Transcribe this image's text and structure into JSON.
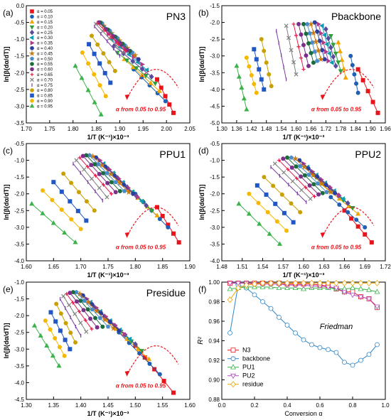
{
  "figure": {
    "alpha_labels": [
      "α = 0.05",
      "α = 0.10",
      "α = 0.15",
      "α = 0.20",
      "α = 0.25",
      "α = 0.30",
      "α = 0.35",
      "α = 0.40",
      "α = 0.45",
      "α = 0.50",
      "α = 0.55",
      "α = 0.60",
      "α = 0.65",
      "α = 0.70",
      "α = 0.75",
      "α = 0.80",
      "α = 0.85",
      "α = 0.90",
      "α = 0.95"
    ],
    "alpha_colors": [
      "#e8141b",
      "#1f5fb4",
      "#f0a500",
      "#2f9e3c",
      "#5a4a9c",
      "#0f9bb0",
      "#b03a8a",
      "#2b3f9e",
      "#c97a10",
      "#4a8cc9",
      "#1c6b3c",
      "#7a2f8a",
      "#e6194b",
      "#808080",
      "#7b3fa0",
      "#c8a000",
      "#2057c5",
      "#f5b800",
      "#3cb34a"
    ],
    "annotation": "α from 0.05 to 0.95",
    "xlabel": "1/T (K⁻¹)×10⁻³",
    "ylabel": "ln[β(dα/dT)]"
  },
  "chart_data": [
    {
      "type": "scatter",
      "panel_label": "(a)",
      "title": "PN3",
      "xlim": [
        1.7,
        2.05
      ],
      "ylim": [
        -3.5,
        0.0
      ],
      "xticks": [
        "1.70",
        "1.75",
        "1.80",
        "1.85",
        "1.90",
        "1.95",
        "2.00",
        "2.05"
      ],
      "yticks": [
        "0.0",
        "-0.5",
        "-1.0",
        "-1.5",
        "-2.0",
        "-2.5",
        "-3.0",
        "-3.5"
      ],
      "series_start_x": [
        1.98,
        1.93,
        1.91,
        1.895,
        1.888,
        1.882,
        1.876,
        1.87,
        1.866,
        1.862,
        1.858,
        1.855,
        1.852,
        1.849,
        1.846,
        1.84,
        1.834,
        1.82,
        1.805
      ],
      "series_start_y": [
        -2.2,
        -1.9,
        -1.6,
        -1.4,
        -1.2,
        -1.0,
        -0.85,
        -0.7,
        -0.6,
        -0.52,
        -0.5,
        -0.5,
        -0.52,
        -0.55,
        -0.62,
        -0.9,
        -1.15,
        -1.4,
        -1.8
      ],
      "series_end_x": [
        2.015,
        1.998,
        1.985,
        1.976,
        1.968,
        1.958,
        1.948,
        1.94,
        1.933,
        1.927,
        1.922,
        1.917,
        1.912,
        1.907,
        1.9,
        1.89,
        1.88,
        1.87,
        1.86
      ],
      "series_end_y": [
        -3.2,
        -2.85,
        -2.55,
        -2.32,
        -2.12,
        -1.92,
        -1.75,
        -1.6,
        -1.48,
        -1.4,
        -1.35,
        -1.33,
        -1.35,
        -1.4,
        -1.5,
        -1.95,
        -2.3,
        -2.7,
        -3.25
      ]
    },
    {
      "type": "scatter",
      "panel_label": "(b)",
      "title": "Pbackbone",
      "xlim": [
        1.3,
        1.96
      ],
      "ylim": [
        -5.0,
        -1.5
      ],
      "xticks": [
        "1.30",
        "1.36",
        "1.42",
        "1.48",
        "1.54",
        "1.60",
        "1.66",
        "1.72",
        "1.78",
        "1.84",
        "1.90",
        "1.96"
      ],
      "yticks": [
        "-1.5",
        "-2.0",
        "-2.5",
        "-3.0",
        "-3.5",
        "-4.0",
        "-4.5",
        "-5.0"
      ],
      "series_start_x": [
        1.85,
        1.82,
        1.77,
        1.74,
        1.72,
        1.705,
        1.69,
        1.675,
        1.66,
        1.645,
        1.63,
        1.61,
        1.59,
        1.56,
        1.52,
        1.46,
        1.43,
        1.4,
        1.36
      ],
      "series_start_y": [
        -3.4,
        -3.0,
        -2.6,
        -2.4,
        -2.2,
        -2.1,
        -2.05,
        -2.0,
        -2.05,
        -2.05,
        -2.05,
        -2.05,
        -2.05,
        -2.1,
        -2.25,
        -2.5,
        -2.8,
        -3.05,
        -3.3
      ],
      "series_end_x": [
        1.93,
        1.85,
        1.8,
        1.78,
        1.76,
        1.745,
        1.73,
        1.715,
        1.7,
        1.685,
        1.67,
        1.65,
        1.63,
        1.6,
        1.56,
        1.5,
        1.47,
        1.44,
        1.4
      ],
      "series_end_y": [
        -4.7,
        -4.1,
        -3.65,
        -3.45,
        -3.3,
        -3.2,
        -3.15,
        -3.1,
        -3.1,
        -3.15,
        -3.2,
        -3.3,
        -3.4,
        -3.55,
        -3.7,
        -3.9,
        -4.0,
        -4.1,
        -4.6
      ]
    },
    {
      "type": "scatter",
      "panel_label": "(c)",
      "title": "PPU1",
      "xlim": [
        1.6,
        1.9
      ],
      "ylim": [
        -4.0,
        -0.5
      ],
      "xticks": [
        "1.60",
        "1.65",
        "1.70",
        "1.75",
        "1.80",
        "1.85",
        "1.90"
      ],
      "yticks": [
        "-0.5",
        "-1.0",
        "-1.5",
        "-2.0",
        "-2.5",
        "-3.0",
        "-3.5",
        "-4.0"
      ],
      "series_start_x": [
        1.84,
        1.8,
        1.77,
        1.76,
        1.75,
        1.742,
        1.735,
        1.728,
        1.722,
        1.716,
        1.71,
        1.704,
        1.698,
        1.692,
        1.686,
        1.668,
        1.65,
        1.63,
        1.61
      ],
      "series_start_y": [
        -2.4,
        -2.0,
        -1.6,
        -1.4,
        -1.25,
        -1.1,
        -1.0,
        -0.92,
        -0.88,
        -0.85,
        -0.85,
        -0.87,
        -0.92,
        -1.0,
        -1.1,
        -1.4,
        -1.65,
        -1.9,
        -2.3
      ],
      "series_end_x": [
        1.88,
        1.86,
        1.84,
        1.83,
        1.82,
        1.812,
        1.804,
        1.796,
        1.788,
        1.78,
        1.772,
        1.764,
        1.756,
        1.748,
        1.74,
        1.725,
        1.71,
        1.7,
        1.69
      ],
      "series_end_y": [
        -3.45,
        -3.0,
        -2.65,
        -2.5,
        -2.35,
        -2.22,
        -2.1,
        -2.0,
        -1.95,
        -1.92,
        -1.92,
        -1.95,
        -2.0,
        -2.1,
        -2.2,
        -2.5,
        -2.8,
        -3.05,
        -3.45
      ]
    },
    {
      "type": "scatter",
      "panel_label": "(d)",
      "title": "PPU2",
      "xlim": [
        1.48,
        1.72
      ],
      "ylim": [
        -4.0,
        -0.5
      ],
      "xticks": [
        "1.48",
        "1.51",
        "1.54",
        "1.57",
        "1.60",
        "1.63",
        "1.66",
        "1.69",
        "1.72"
      ],
      "yticks": [
        "-0.5",
        "-1.0",
        "-1.5",
        "-2.0",
        "-2.5",
        "-3.0",
        "-3.5",
        "-4.0"
      ],
      "series_start_x": [
        1.66,
        1.64,
        1.625,
        1.618,
        1.612,
        1.606,
        1.6,
        1.594,
        1.588,
        1.582,
        1.576,
        1.57,
        1.564,
        1.558,
        1.552,
        1.542,
        1.532,
        1.52,
        1.505
      ],
      "series_start_y": [
        -2.5,
        -2.1,
        -1.7,
        -1.5,
        -1.35,
        -1.2,
        -1.1,
        -1.0,
        -0.95,
        -0.92,
        -0.92,
        -0.95,
        -1.0,
        -1.1,
        -1.2,
        -1.5,
        -1.75,
        -2.0,
        -2.3
      ],
      "series_end_x": [
        1.7,
        1.69,
        1.68,
        1.672,
        1.665,
        1.658,
        1.652,
        1.646,
        1.64,
        1.634,
        1.628,
        1.622,
        1.616,
        1.61,
        1.604,
        1.595,
        1.585,
        1.575,
        1.565
      ],
      "series_end_y": [
        -3.45,
        -3.0,
        -2.6,
        -2.42,
        -2.28,
        -2.15,
        -2.05,
        -1.98,
        -1.95,
        -1.95,
        -1.98,
        -2.02,
        -2.08,
        -2.15,
        -2.25,
        -2.55,
        -2.85,
        -3.1,
        -3.5
      ]
    },
    {
      "type": "scatter",
      "panel_label": "(e)",
      "title": "Presidue",
      "xlim": [
        1.3,
        1.6
      ],
      "ylim": [
        -4.5,
        -1.0
      ],
      "xticks": [
        "1.30",
        "1.35",
        "1.40",
        "1.45",
        "1.50",
        "1.55",
        "1.60"
      ],
      "yticks": [
        "-1.0",
        "-1.5",
        "-2.0",
        "-2.5",
        "-3.0",
        "-3.5",
        "-4.0",
        "-4.5"
      ],
      "series_start_x": [
        1.5,
        1.47,
        1.445,
        1.435,
        1.425,
        1.418,
        1.411,
        1.404,
        1.398,
        1.392,
        1.386,
        1.38,
        1.374,
        1.368,
        1.362,
        1.355,
        1.345,
        1.335,
        1.315
      ],
      "series_start_y": [
        -2.9,
        -2.5,
        -2.1,
        -1.9,
        -1.75,
        -1.6,
        -1.5,
        -1.4,
        -1.35,
        -1.3,
        -1.3,
        -1.32,
        -1.35,
        -1.42,
        -1.5,
        -1.65,
        -1.9,
        -2.15,
        -2.3
      ],
      "series_end_x": [
        1.57,
        1.545,
        1.525,
        1.512,
        1.5,
        1.49,
        1.48,
        1.47,
        1.46,
        1.45,
        1.44,
        1.43,
        1.42,
        1.41,
        1.4,
        1.39,
        1.38,
        1.37,
        1.36
      ],
      "series_end_y": [
        -4.3,
        -3.75,
        -3.3,
        -3.05,
        -2.85,
        -2.7,
        -2.55,
        -2.45,
        -2.38,
        -2.33,
        -2.33,
        -2.35,
        -2.4,
        -2.48,
        -2.6,
        -2.8,
        -3.0,
        -3.2,
        -3.5
      ]
    },
    {
      "type": "line",
      "panel_label": "(f)",
      "title": "",
      "annotation": "Friedman",
      "xlabel": "Conversion α",
      "ylabel": "R²",
      "xlim": [
        0.0,
        1.0
      ],
      "ylim": [
        0.88,
        1.0
      ],
      "xticks": [
        "0.0",
        "0.2",
        "0.4",
        "0.6",
        "0.8",
        "1.0"
      ],
      "yticks": [
        "1.00",
        "0.98",
        "0.96",
        "0.94",
        "0.92",
        "0.90",
        "0.88"
      ],
      "legend_position": "bottom-left",
      "x": [
        0.05,
        0.1,
        0.15,
        0.2,
        0.25,
        0.3,
        0.35,
        0.4,
        0.45,
        0.5,
        0.55,
        0.6,
        0.65,
        0.7,
        0.75,
        0.8,
        0.85,
        0.9,
        0.95
      ],
      "series": [
        {
          "name": "N3",
          "color": "#e8141b",
          "marker": "square",
          "values": [
            0.999,
            0.999,
            0.999,
            0.999,
            0.999,
            0.999,
            0.999,
            0.998,
            0.998,
            0.998,
            0.998,
            0.997,
            0.996,
            0.993,
            0.99,
            0.99,
            0.985,
            0.983,
            0.974
          ]
        },
        {
          "name": "backbone",
          "color": "#2f86c8",
          "marker": "circle",
          "values": [
            0.948,
            0.997,
            0.994,
            0.987,
            0.98,
            0.973,
            0.964,
            0.956,
            0.948,
            0.941,
            0.936,
            0.933,
            0.931,
            0.928,
            0.918,
            0.915,
            0.92,
            0.926,
            0.936
          ]
        },
        {
          "name": "PU1",
          "color": "#3cb34a",
          "marker": "triangle-up",
          "values": [
            0.993,
            0.994,
            0.995,
            0.995,
            0.995,
            0.995,
            0.994,
            0.994,
            0.994,
            0.993,
            0.994,
            0.994,
            0.994,
            0.993,
            0.993,
            0.994,
            0.993,
            0.992,
            0.99
          ]
        },
        {
          "name": "PU2",
          "color": "#b04fc1",
          "marker": "triangle-down",
          "values": [
            0.999,
            0.999,
            0.999,
            0.998,
            0.998,
            0.998,
            0.998,
            0.997,
            0.997,
            0.997,
            0.996,
            0.996,
            0.995,
            0.994,
            0.99,
            0.987,
            0.985,
            0.983,
            0.975
          ]
        },
        {
          "name": "residue",
          "color": "#f0a500",
          "marker": "diamond",
          "values": [
            0.982,
            0.994,
            0.997,
            0.998,
            0.999,
            0.999,
            0.999,
            0.999,
            0.999,
            0.999,
            0.999,
            0.999,
            0.999,
            0.999,
            0.999,
            0.999,
            0.999,
            0.999,
            0.999
          ]
        }
      ]
    }
  ]
}
